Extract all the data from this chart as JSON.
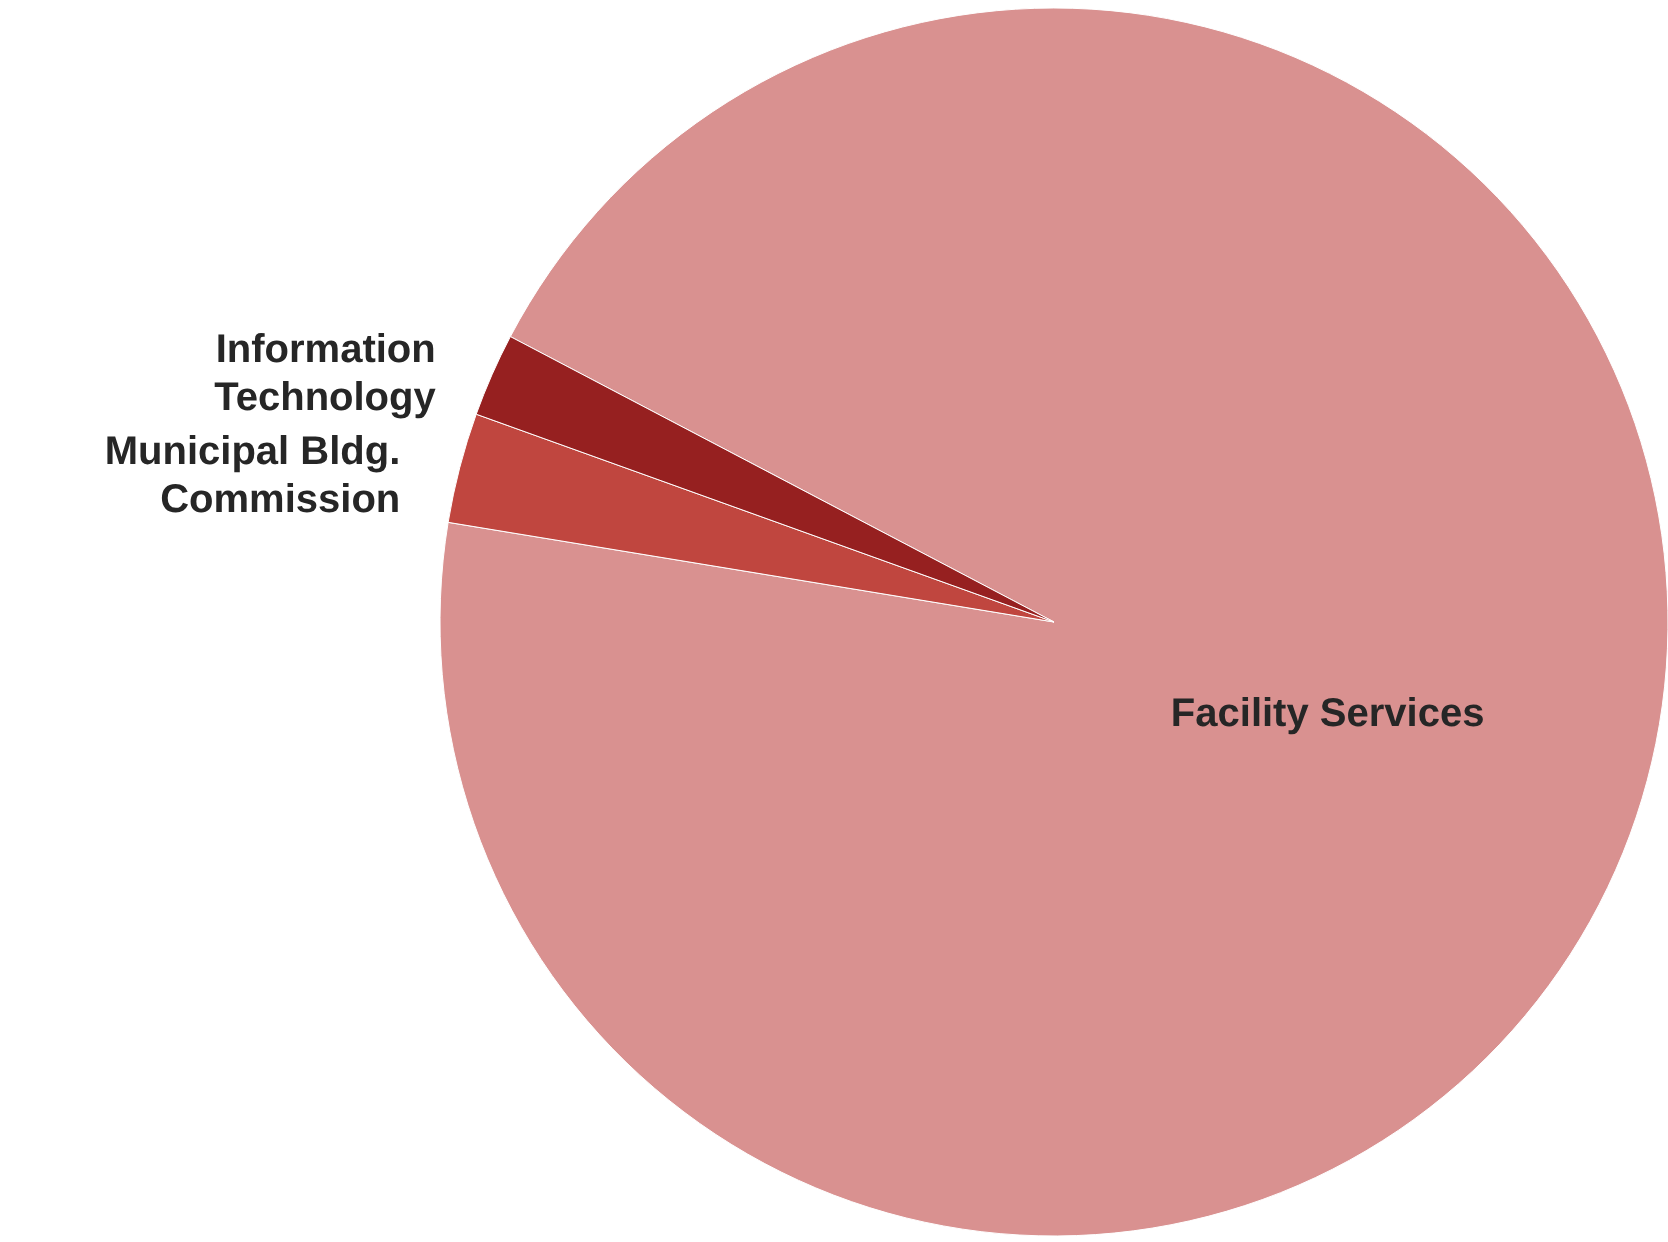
{
  "chart_data": {
    "type": "pie",
    "categories": [
      "Facility Services",
      "Municipal Bldg. Commission",
      "Information Technology"
    ],
    "values": [
      94.9,
      2.9,
      2.2
    ],
    "colors": [
      "#d99190",
      "#c0463f",
      "#962020"
    ]
  }
}
